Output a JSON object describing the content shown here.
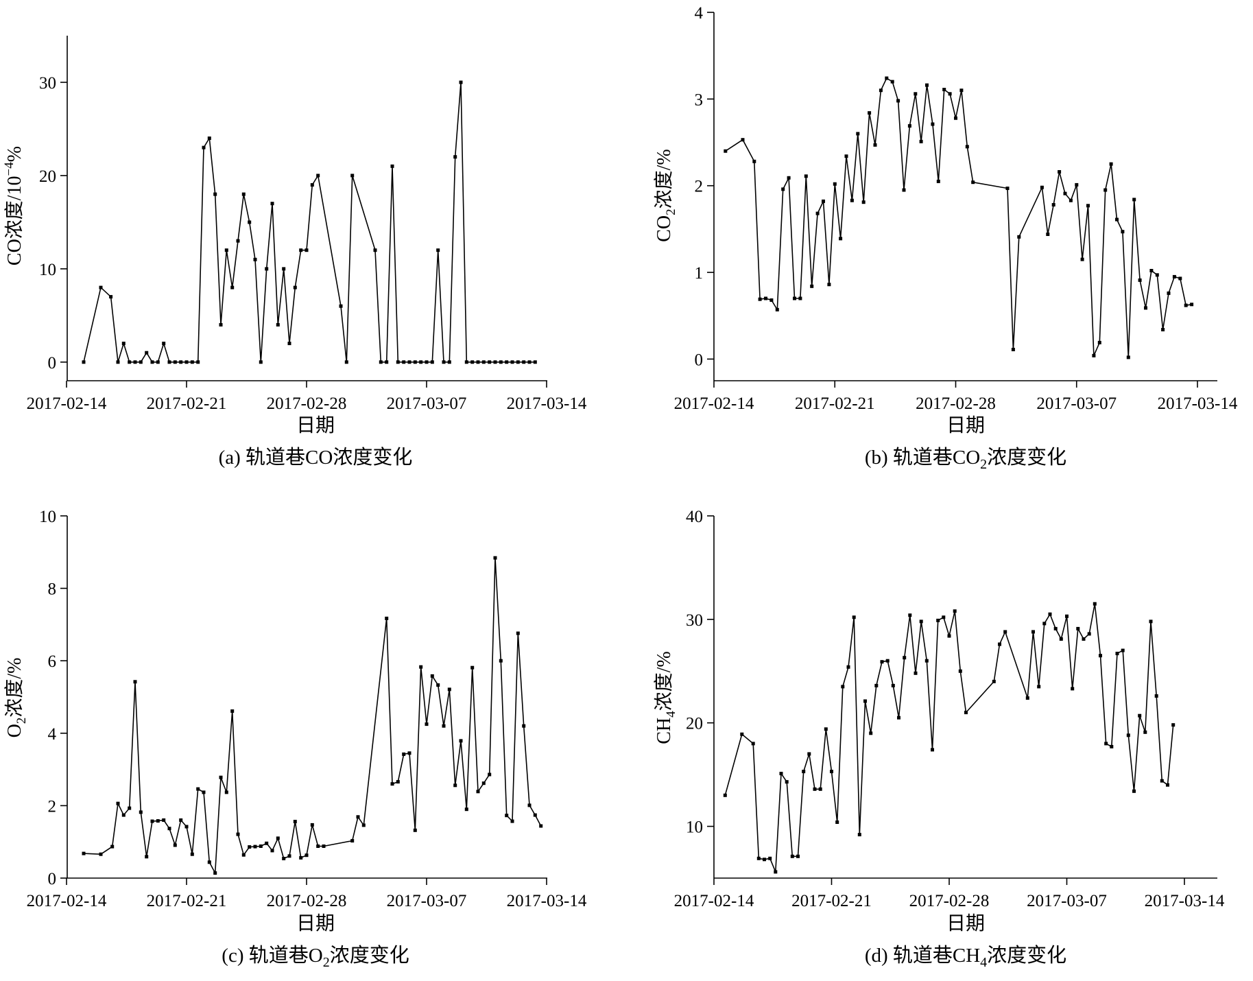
{
  "chart_data": [
    {
      "id": "a",
      "type": "line",
      "caption": "(a) 轨道巷CO浓度变化",
      "caption_parts": [
        "(a) 轨道巷CO浓度变化"
      ],
      "xlabel": "日期",
      "ylabel": "CO浓度/10−4%",
      "ylabel_parts": [
        "CO浓度/10",
        "−4",
        "%"
      ],
      "x_ticks": [
        "2017-02-14",
        "2017-02-21",
        "2017-02-28",
        "2017-03-07",
        "2017-03-14"
      ],
      "y_ticks": [
        0,
        10,
        20,
        30
      ],
      "ylim": [
        -2,
        35
      ],
      "xlim": [
        "2017-02-14",
        "2017-03-14"
      ],
      "grid": false,
      "x": [
        "2017-02-15 00:00",
        "2017-02-16 00:00",
        "2017-02-16 14:00",
        "2017-02-17 00:00",
        "2017-02-17 08:00",
        "2017-02-17 16:00",
        "2017-02-18 00:00",
        "2017-02-18 08:00",
        "2017-02-18 16:00",
        "2017-02-19 00:00",
        "2017-02-19 08:00",
        "2017-02-19 16:00",
        "2017-02-20 00:00",
        "2017-02-20 08:00",
        "2017-02-20 16:00",
        "2017-02-21 00:00",
        "2017-02-21 08:00",
        "2017-02-21 16:00",
        "2017-02-22 00:00",
        "2017-02-22 08:00",
        "2017-02-22 16:00",
        "2017-02-23 00:00",
        "2017-02-23 08:00",
        "2017-02-23 16:00",
        "2017-02-24 00:00",
        "2017-02-24 08:00",
        "2017-02-24 16:00",
        "2017-02-25 00:00",
        "2017-02-25 08:00",
        "2017-02-25 16:00",
        "2017-02-26 00:00",
        "2017-02-26 08:00",
        "2017-02-26 16:00",
        "2017-02-27 00:00",
        "2017-02-27 08:00",
        "2017-02-27 16:00",
        "2017-02-28 00:00",
        "2017-02-28 08:00",
        "2017-02-28 16:00",
        "2017-03-02 00:00",
        "2017-03-02 08:00",
        "2017-03-02 16:00",
        "2017-03-04 00:00",
        "2017-03-04 08:00",
        "2017-03-04 16:00",
        "2017-03-05 00:00",
        "2017-03-05 08:00",
        "2017-03-05 16:00",
        "2017-03-06 00:00",
        "2017-03-06 08:00",
        "2017-03-06 16:00",
        "2017-03-07 00:00",
        "2017-03-07 08:00",
        "2017-03-07 16:00",
        "2017-03-08 00:00",
        "2017-03-08 08:00",
        "2017-03-08 16:00",
        "2017-03-09 00:00",
        "2017-03-09 08:00",
        "2017-03-09 16:00",
        "2017-03-10 00:00",
        "2017-03-10 08:00",
        "2017-03-10 16:00",
        "2017-03-11 00:00",
        "2017-03-11 08:00",
        "2017-03-11 16:00",
        "2017-03-12 00:00",
        "2017-03-12 08:00",
        "2017-03-12 16:00",
        "2017-03-13 00:00",
        "2017-03-13 08:00"
      ],
      "y": [
        0,
        8,
        7,
        0,
        2,
        0,
        0,
        0,
        1,
        0,
        0,
        2,
        0,
        0,
        0,
        0,
        0,
        0,
        23,
        24,
        18,
        4,
        12,
        8,
        13,
        18,
        15,
        11,
        0,
        10,
        17,
        4,
        10,
        2,
        8,
        12,
        12,
        19,
        20,
        6,
        0,
        20,
        12,
        0,
        0,
        21,
        0,
        0,
        0,
        0,
        0,
        0,
        0,
        12,
        0,
        0,
        22,
        30,
        0,
        0,
        0,
        0,
        0,
        0,
        0,
        0,
        0,
        0,
        0,
        0,
        0
      ]
    },
    {
      "id": "b",
      "type": "line",
      "caption": "(b) 轨道巷CO2浓度变化",
      "caption_parts": [
        "(b) 轨道巷CO",
        "2",
        "浓度变化"
      ],
      "xlabel": "日期",
      "ylabel": "CO2浓度/%",
      "ylabel_parts": [
        "CO",
        "2",
        "浓度/%"
      ],
      "x_ticks": [
        "2017-02-14",
        "2017-02-21",
        "2017-02-28",
        "2017-03-07",
        "2017-03-14"
      ],
      "y_ticks": [
        0,
        1,
        2,
        3,
        4
      ],
      "ylim": [
        -0.25,
        4
      ],
      "xlim": [
        "2017-02-14",
        "2017-03-14"
      ],
      "grid": false,
      "x": [
        "2017-02-14 16:00",
        "2017-02-15 16:00",
        "2017-02-16 08:00",
        "2017-02-16 16:00",
        "2017-02-17 00:00",
        "2017-02-17 08:00",
        "2017-02-17 16:00",
        "2017-02-18 00:00",
        "2017-02-18 08:00",
        "2017-02-18 16:00",
        "2017-02-19 00:00",
        "2017-02-19 08:00",
        "2017-02-19 16:00",
        "2017-02-20 00:00",
        "2017-02-20 08:00",
        "2017-02-20 16:00",
        "2017-02-21 00:00",
        "2017-02-21 08:00",
        "2017-02-21 16:00",
        "2017-02-22 00:00",
        "2017-02-22 08:00",
        "2017-02-22 16:00",
        "2017-02-23 00:00",
        "2017-02-23 08:00",
        "2017-02-23 16:00",
        "2017-02-24 00:00",
        "2017-02-24 08:00",
        "2017-02-24 16:00",
        "2017-02-25 00:00",
        "2017-02-25 08:00",
        "2017-02-25 16:00",
        "2017-02-26 00:00",
        "2017-02-26 08:00",
        "2017-02-26 16:00",
        "2017-02-27 00:00",
        "2017-02-27 08:00",
        "2017-02-27 16:00",
        "2017-02-28 00:00",
        "2017-02-28 08:00",
        "2017-02-28 16:00",
        "2017-03-01 00:00",
        "2017-03-03 00:00",
        "2017-03-03 08:00",
        "2017-03-03 16:00",
        "2017-03-05 00:00",
        "2017-03-05 08:00",
        "2017-03-05 16:00",
        "2017-03-06 00:00",
        "2017-03-06 08:00",
        "2017-03-06 16:00",
        "2017-03-07 00:00",
        "2017-03-07 08:00",
        "2017-03-07 16:00",
        "2017-03-08 00:00",
        "2017-03-08 08:00",
        "2017-03-08 16:00",
        "2017-03-09 00:00",
        "2017-03-09 08:00",
        "2017-03-09 16:00",
        "2017-03-10 00:00",
        "2017-03-10 08:00",
        "2017-03-10 16:00",
        "2017-03-11 00:00",
        "2017-03-11 08:00",
        "2017-03-11 16:00",
        "2017-03-12 00:00",
        "2017-03-12 08:00",
        "2017-03-12 16:00",
        "2017-03-13 00:00",
        "2017-03-13 08:00",
        "2017-03-13 16:00"
      ],
      "y": [
        2.4,
        2.53,
        2.28,
        0.69,
        0.7,
        0.68,
        0.57,
        1.96,
        2.09,
        0.7,
        0.7,
        2.11,
        0.84,
        1.68,
        1.82,
        0.86,
        2.02,
        1.39,
        2.34,
        1.83,
        2.6,
        1.81,
        2.84,
        2.47,
        3.1,
        3.24,
        3.2,
        2.98,
        1.95,
        2.69,
        3.06,
        2.51,
        3.16,
        2.71,
        2.05,
        3.11,
        3.06,
        2.78,
        3.1,
        2.45,
        2.04,
        1.97,
        0.11,
        1.41,
        1.98,
        1.44,
        1.78,
        2.16,
        1.91,
        1.83,
        2.01,
        1.15,
        1.77,
        0.04,
        0.19,
        1.95,
        2.25,
        1.61,
        1.47,
        0.02,
        1.84,
        0.91,
        0.59,
        1.02,
        0.97,
        0.34,
        0.76,
        0.95,
        0.93,
        0.62,
        0.63
      ]
    },
    {
      "id": "c",
      "type": "line",
      "caption": "(c) 轨道巷O2浓度变化",
      "caption_parts": [
        "(c) 轨道巷O",
        "2",
        "浓度变化"
      ],
      "xlabel": "日期",
      "ylabel": "O2浓度/%",
      "ylabel_parts": [
        "O",
        "2",
        "浓度/%"
      ],
      "x_ticks": [
        "2017-02-14",
        "2017-02-21",
        "2017-02-28",
        "2017-03-07",
        "2017-03-14"
      ],
      "y_ticks": [
        0,
        2,
        4,
        6,
        8,
        10
      ],
      "ylim": [
        0,
        10
      ],
      "xlim": [
        "2017-02-14",
        "2017-03-14"
      ],
      "grid": false,
      "x": [
        "2017-02-15 00:00",
        "2017-02-16 00:00",
        "2017-02-16 16:00",
        "2017-02-17 00:00",
        "2017-02-17 08:00",
        "2017-02-17 16:00",
        "2017-02-18 00:00",
        "2017-02-18 08:00",
        "2017-02-18 16:00",
        "2017-02-19 00:00",
        "2017-02-19 08:00",
        "2017-02-19 16:00",
        "2017-02-20 00:00",
        "2017-02-20 08:00",
        "2017-02-20 16:00",
        "2017-02-21 00:00",
        "2017-02-21 08:00",
        "2017-02-21 16:00",
        "2017-02-22 00:00",
        "2017-02-22 08:00",
        "2017-02-22 16:00",
        "2017-02-23 00:00",
        "2017-02-23 08:00",
        "2017-02-23 16:00",
        "2017-02-24 00:00",
        "2017-02-24 08:00",
        "2017-02-24 16:00",
        "2017-02-25 00:00",
        "2017-02-25 08:00",
        "2017-02-25 16:00",
        "2017-02-26 00:00",
        "2017-02-26 08:00",
        "2017-02-26 16:00",
        "2017-02-27 00:00",
        "2017-02-27 08:00",
        "2017-02-27 16:00",
        "2017-02-28 00:00",
        "2017-02-28 08:00",
        "2017-02-28 16:00",
        "2017-03-01 00:00",
        "2017-03-02 16:00",
        "2017-03-03 00:00",
        "2017-03-03 08:00",
        "2017-03-04 16:00",
        "2017-03-05 00:00",
        "2017-03-05 08:00",
        "2017-03-05 16:00",
        "2017-03-06 00:00",
        "2017-03-06 08:00",
        "2017-03-06 16:00",
        "2017-03-07 00:00",
        "2017-03-07 08:00",
        "2017-03-07 16:00",
        "2017-03-08 00:00",
        "2017-03-08 08:00",
        "2017-03-08 16:00",
        "2017-03-09 00:00",
        "2017-03-09 08:00",
        "2017-03-09 16:00",
        "2017-03-10 00:00",
        "2017-03-10 08:00",
        "2017-03-10 16:00",
        "2017-03-11 00:00",
        "2017-03-11 08:00",
        "2017-03-11 16:00",
        "2017-03-12 00:00",
        "2017-03-12 08:00",
        "2017-03-12 16:00",
        "2017-03-13 00:00",
        "2017-03-13 08:00",
        "2017-03-13 16:00"
      ],
      "y": [
        0.68,
        0.66,
        0.87,
        2.06,
        1.74,
        1.93,
        5.42,
        1.82,
        0.59,
        1.57,
        1.58,
        1.6,
        1.37,
        0.91,
        1.6,
        1.42,
        0.66,
        2.46,
        2.37,
        0.44,
        0.14,
        2.78,
        2.37,
        4.61,
        1.21,
        0.64,
        0.86,
        0.87,
        0.88,
        0.96,
        0.76,
        1.1,
        0.54,
        0.61,
        1.56,
        0.56,
        0.63,
        1.47,
        0.88,
        0.88,
        1.03,
        1.69,
        1.46,
        7.17,
        2.6,
        2.66,
        3.42,
        3.45,
        1.32,
        5.83,
        4.25,
        5.58,
        5.33,
        4.2,
        5.21,
        2.56,
        3.79,
        1.9,
        5.81,
        2.39,
        2.62,
        2.86,
        8.84,
        6.0,
        1.73,
        1.57,
        6.76,
        4.2,
        2.01,
        1.74,
        1.44
      ]
    },
    {
      "id": "d",
      "type": "line",
      "caption": "(d) 轨道巷CH4浓度变化",
      "caption_parts": [
        "(d) 轨道巷CH",
        "4",
        "浓度变化"
      ],
      "xlabel": "日期",
      "ylabel": "CH4浓度/%",
      "ylabel_parts": [
        "CH",
        "4",
        "浓度/%"
      ],
      "x_ticks": [
        "2017-02-14",
        "2017-02-21",
        "2017-02-28",
        "2017-03-07",
        "2017-03-14"
      ],
      "y_ticks": [
        10,
        20,
        30,
        40
      ],
      "ylim": [
        5,
        40
      ],
      "xlim": [
        "2017-02-14",
        "2017-03-14"
      ],
      "grid": false,
      "x": [
        "2017-02-14 16:00",
        "2017-02-15 16:00",
        "2017-02-16 08:00",
        "2017-02-16 16:00",
        "2017-02-17 00:00",
        "2017-02-17 08:00",
        "2017-02-17 16:00",
        "2017-02-18 00:00",
        "2017-02-18 08:00",
        "2017-02-18 16:00",
        "2017-02-19 00:00",
        "2017-02-19 08:00",
        "2017-02-19 16:00",
        "2017-02-20 00:00",
        "2017-02-20 08:00",
        "2017-02-20 16:00",
        "2017-02-21 00:00",
        "2017-02-21 08:00",
        "2017-02-21 16:00",
        "2017-02-22 00:00",
        "2017-02-22 08:00",
        "2017-02-22 16:00",
        "2017-02-23 00:00",
        "2017-02-23 08:00",
        "2017-02-23 16:00",
        "2017-02-24 00:00",
        "2017-02-24 08:00",
        "2017-02-24 16:00",
        "2017-02-25 00:00",
        "2017-02-25 08:00",
        "2017-02-25 16:00",
        "2017-02-26 00:00",
        "2017-02-26 08:00",
        "2017-02-26 16:00",
        "2017-02-27 00:00",
        "2017-02-27 08:00",
        "2017-02-27 16:00",
        "2017-02-28 00:00",
        "2017-02-28 08:00",
        "2017-02-28 16:00",
        "2017-03-01 00:00",
        "2017-03-02 16:00",
        "2017-03-03 00:00",
        "2017-03-03 08:00",
        "2017-03-04 16:00",
        "2017-03-05 00:00",
        "2017-03-05 08:00",
        "2017-03-05 16:00",
        "2017-03-06 00:00",
        "2017-03-06 08:00",
        "2017-03-06 16:00",
        "2017-03-07 00:00",
        "2017-03-07 08:00",
        "2017-03-07 16:00",
        "2017-03-08 00:00",
        "2017-03-08 08:00",
        "2017-03-08 16:00",
        "2017-03-09 00:00",
        "2017-03-09 08:00",
        "2017-03-09 16:00",
        "2017-03-10 00:00",
        "2017-03-10 08:00",
        "2017-03-10 16:00",
        "2017-03-11 00:00",
        "2017-03-11 08:00",
        "2017-03-11 16:00",
        "2017-03-12 00:00",
        "2017-03-12 08:00",
        "2017-03-12 16:00",
        "2017-03-13 00:00",
        "2017-03-13 08:00"
      ],
      "y": [
        13,
        18.9,
        18,
        6.9,
        6.8,
        6.9,
        5.6,
        15.1,
        14.3,
        7.1,
        7.1,
        15.3,
        17,
        13.6,
        13.6,
        19.4,
        15.3,
        10.4,
        23.5,
        25.4,
        30.2,
        9.2,
        22.1,
        19,
        23.6,
        25.9,
        26,
        23.6,
        20.5,
        26.3,
        30.4,
        24.8,
        29.8,
        26,
        17.4,
        29.9,
        30.2,
        28.4,
        30.8,
        25,
        21,
        24,
        27.6,
        28.8,
        22.4,
        28.8,
        23.5,
        29.6,
        30.5,
        29.1,
        28.1,
        30.3,
        23.3,
        29.1,
        28.1,
        28.6,
        31.5,
        26.5,
        18,
        17.7,
        26.7,
        27,
        18.8,
        13.4,
        20.7,
        19.1,
        29.8,
        22.6,
        14.4,
        14,
        19.8
      ]
    }
  ]
}
